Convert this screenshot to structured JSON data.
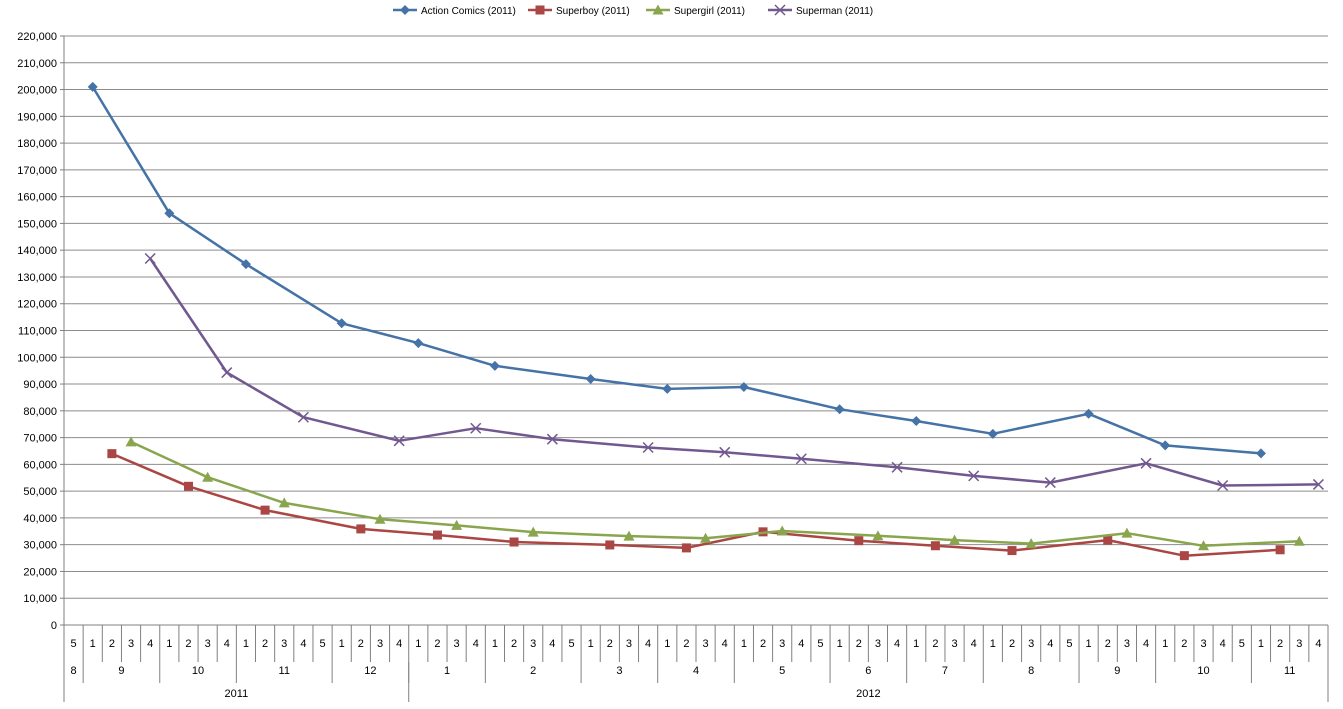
{
  "chart_data": {
    "type": "line",
    "title": "",
    "xlabel": "",
    "ylabel": "",
    "ylim": [
      0,
      220000
    ],
    "ytick_step": 10000,
    "grid": true,
    "legend_position": "top-center",
    "colors": {
      "Action Comics (2011)": "#4572A7",
      "Superboy (2011)": "#AA4643",
      "Supergirl (2011)": "#89A54E",
      "Superman (2011)": "#71588F"
    },
    "markers": {
      "Action Comics (2011)": "diamond",
      "Superboy (2011)": "square",
      "Supergirl (2011)": "triangle",
      "Superman (2011)": "x"
    },
    "weeks": [
      "5",
      "1",
      "2",
      "3",
      "4",
      "1",
      "2",
      "3",
      "4",
      "1",
      "2",
      "3",
      "4",
      "5",
      "1",
      "2",
      "3",
      "4",
      "1",
      "2",
      "3",
      "4",
      "1",
      "2",
      "3",
      "4",
      "5",
      "1",
      "2",
      "3",
      "4",
      "1",
      "2",
      "3",
      "4",
      "1",
      "2",
      "3",
      "4",
      "5",
      "1",
      "2",
      "3",
      "4",
      "1",
      "2",
      "3",
      "4",
      "1",
      "2",
      "3",
      "4",
      "5",
      "1",
      "2",
      "3",
      "4",
      "1",
      "2",
      "3",
      "4",
      "5",
      "1",
      "2",
      "3",
      "4"
    ],
    "months": [
      {
        "label": "8",
        "start": 0,
        "end": 0
      },
      {
        "label": "9",
        "start": 1,
        "end": 4
      },
      {
        "label": "10",
        "start": 5,
        "end": 8
      },
      {
        "label": "11",
        "start": 9,
        "end": 13
      },
      {
        "label": "12",
        "start": 14,
        "end": 17
      },
      {
        "label": "1",
        "start": 18,
        "end": 21
      },
      {
        "label": "2",
        "start": 22,
        "end": 26
      },
      {
        "label": "3",
        "start": 27,
        "end": 30
      },
      {
        "label": "4",
        "start": 31,
        "end": 34
      },
      {
        "label": "5",
        "start": 35,
        "end": 39
      },
      {
        "label": "6",
        "start": 40,
        "end": 43
      },
      {
        "label": "7",
        "start": 44,
        "end": 47
      },
      {
        "label": "8",
        "start": 48,
        "end": 52
      },
      {
        "label": "9",
        "start": 53,
        "end": 56
      },
      {
        "label": "10",
        "start": 57,
        "end": 61
      },
      {
        "label": "11",
        "start": 62,
        "end": 65
      }
    ],
    "years": [
      {
        "label": "2011",
        "start": 0,
        "end": 17
      },
      {
        "label": "2012",
        "start": 18,
        "end": 65
      }
    ],
    "series": [
      {
        "name": "Action Comics (2011)",
        "points": [
          [
            1,
            201000
          ],
          [
            5,
            153800
          ],
          [
            9,
            134800
          ],
          [
            14,
            112700
          ],
          [
            18,
            105300
          ],
          [
            22,
            96800
          ],
          [
            27,
            91900
          ],
          [
            31,
            88200
          ],
          [
            35,
            88900
          ],
          [
            40,
            80600
          ],
          [
            44,
            76200
          ],
          [
            48,
            71400
          ],
          [
            53,
            78900
          ],
          [
            57,
            67100
          ],
          [
            62,
            64100
          ]
        ]
      },
      {
        "name": "Superboy (2011)",
        "points": [
          [
            2,
            64000
          ],
          [
            6,
            51800
          ],
          [
            10,
            42900
          ],
          [
            15,
            35900
          ],
          [
            19,
            33600
          ],
          [
            23,
            31000
          ],
          [
            28,
            29900
          ],
          [
            32,
            28800
          ],
          [
            36,
            34800
          ],
          [
            41,
            31500
          ],
          [
            45,
            29600
          ],
          [
            49,
            27800
          ],
          [
            54,
            31700
          ],
          [
            58,
            25900
          ],
          [
            63,
            28100
          ]
        ]
      },
      {
        "name": "Supergirl (2011)",
        "points": [
          [
            3,
            68400
          ],
          [
            7,
            55200
          ],
          [
            11,
            45600
          ],
          [
            16,
            39500
          ],
          [
            20,
            37200
          ],
          [
            24,
            34700
          ],
          [
            29,
            33200
          ],
          [
            33,
            32400
          ],
          [
            37,
            35100
          ],
          [
            42,
            33300
          ],
          [
            46,
            31700
          ],
          [
            50,
            30400
          ],
          [
            55,
            34300
          ],
          [
            59,
            29600
          ],
          [
            64,
            31300
          ]
        ]
      },
      {
        "name": "Superman (2011)",
        "points": [
          [
            4,
            136900
          ],
          [
            8,
            94300
          ],
          [
            12,
            77600
          ],
          [
            17,
            68800
          ],
          [
            21,
            73500
          ],
          [
            25,
            69400
          ],
          [
            30,
            66300
          ],
          [
            34,
            64500
          ],
          [
            38,
            62100
          ],
          [
            43,
            58900
          ],
          [
            47,
            55700
          ],
          [
            51,
            53200
          ],
          [
            56,
            60400
          ],
          [
            60,
            52100
          ],
          [
            65,
            52500
          ]
        ]
      }
    ]
  }
}
